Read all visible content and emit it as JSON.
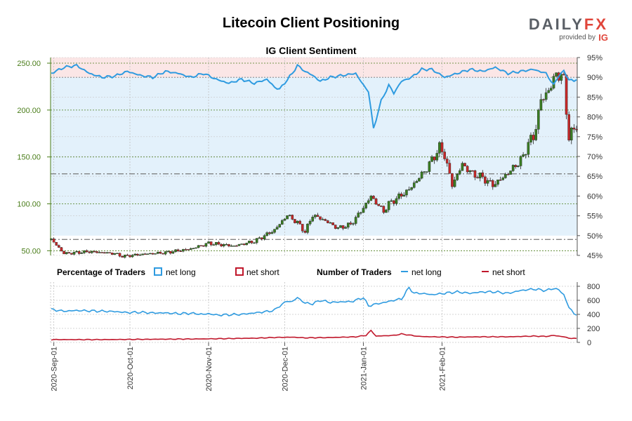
{
  "title": "Litecoin Client Positioning",
  "subtitle": "IG Client Sentiment",
  "logo": {
    "brand": "DAILY",
    "brand_accent": "FX",
    "provided_by": "provided by",
    "partner": "IG"
  },
  "colors": {
    "price_axis": "#4a7d1a",
    "up_candle": "#3a7d22",
    "down_candle": "#c62828",
    "net_long": "#2f9be0",
    "net_short": "#c0172b",
    "long_zone": "#e3f1fb",
    "short_zone": "#fbe6e6"
  },
  "legend": {
    "percentage_heading": "Percentage of Traders",
    "percentage_long": "net long",
    "percentage_short": "net short",
    "number_heading": "Number of Traders",
    "number_long": "net long",
    "number_short": "net short"
  },
  "chart_data": [
    {
      "type": "candlestick",
      "panel": "price",
      "title": "IG Client Sentiment",
      "start_date": "2020-08-31",
      "left_axis": {
        "ticks": [
          50,
          100,
          150,
          200,
          250
        ],
        "tick_labels": [
          "50.00",
          "100.00",
          "150.00",
          "200.00",
          "250.00"
        ],
        "range": [
          45,
          256
        ]
      },
      "reference_lines": [
        {
          "axis": "price",
          "value": 62,
          "style": "dash-dot"
        },
        {
          "axis": "price",
          "value": 132,
          "style": "dash-dot"
        }
      ],
      "close_knots": [
        [
          0,
          62
        ],
        [
          5,
          47
        ],
        [
          15,
          49
        ],
        [
          25,
          47
        ],
        [
          28,
          44
        ],
        [
          35,
          46
        ],
        [
          45,
          48
        ],
        [
          55,
          52
        ],
        [
          62,
          58
        ],
        [
          72,
          55
        ],
        [
          80,
          60
        ],
        [
          88,
          72
        ],
        [
          93,
          88
        ],
        [
          97,
          80
        ],
        [
          100,
          70
        ],
        [
          103,
          88
        ],
        [
          108,
          82
        ],
        [
          113,
          74
        ],
        [
          118,
          78
        ],
        [
          122,
          92
        ],
        [
          126,
          108
        ],
        [
          129,
          98
        ],
        [
          131,
          92
        ],
        [
          133,
          100
        ],
        [
          141,
          115
        ],
        [
          148,
          138
        ],
        [
          153,
          160
        ],
        [
          155,
          152
        ],
        [
          158,
          120
        ],
        [
          162,
          142
        ],
        [
          166,
          132
        ],
        [
          170,
          128
        ],
        [
          174,
          120
        ],
        [
          178,
          128
        ],
        [
          182,
          138
        ],
        [
          186,
          150
        ],
        [
          188,
          166
        ],
        [
          190,
          170
        ],
        [
          193,
          210
        ],
        [
          197,
          225
        ],
        [
          199,
          240
        ],
        [
          202,
          232
        ],
        [
          204,
          170
        ],
        [
          207,
          185
        ]
      ]
    },
    {
      "type": "line",
      "panel": "price",
      "right_axis": {
        "ticks": [
          45,
          50,
          55,
          60,
          65,
          70,
          75,
          80,
          85,
          90,
          95
        ],
        "tick_labels": [
          "45%",
          "50%",
          "55%",
          "60%",
          "65%",
          "70%",
          "75%",
          "80%",
          "85%",
          "90%",
          "95%"
        ],
        "range": [
          45,
          95
        ]
      },
      "series": [
        {
          "name": "net long"
        }
      ],
      "knots": [
        [
          0,
          91
        ],
        [
          5,
          92.5
        ],
        [
          10,
          93
        ],
        [
          15,
          91
        ],
        [
          20,
          90
        ],
        [
          25,
          90.3
        ],
        [
          30,
          91.5
        ],
        [
          35,
          90.5
        ],
        [
          40,
          90
        ],
        [
          45,
          91.5
        ],
        [
          50,
          91
        ],
        [
          55,
          90
        ],
        [
          60,
          91
        ],
        [
          65,
          89.5
        ],
        [
          70,
          88.5
        ],
        [
          75,
          89.5
        ],
        [
          80,
          88.5
        ],
        [
          85,
          89.5
        ],
        [
          88,
          87.5
        ],
        [
          90,
          87
        ],
        [
          95,
          91
        ],
        [
          97,
          93
        ],
        [
          100,
          91.5
        ],
        [
          103,
          90.5
        ],
        [
          106,
          89
        ],
        [
          110,
          90
        ],
        [
          115,
          90.5
        ],
        [
          120,
          91
        ],
        [
          123,
          88
        ],
        [
          125,
          86.5
        ],
        [
          127,
          77
        ],
        [
          130,
          84
        ],
        [
          133,
          88
        ],
        [
          135,
          86
        ],
        [
          138,
          89
        ],
        [
          142,
          90
        ],
        [
          146,
          92
        ],
        [
          150,
          92
        ],
        [
          155,
          90
        ],
        [
          160,
          91
        ],
        [
          165,
          92
        ],
        [
          170,
          91.5
        ],
        [
          175,
          92.5
        ],
        [
          180,
          91
        ],
        [
          185,
          91.5
        ],
        [
          190,
          92
        ],
        [
          195,
          91
        ],
        [
          198,
          88
        ],
        [
          200,
          90.5
        ],
        [
          202,
          91.5
        ],
        [
          204,
          89.5
        ],
        [
          206,
          89
        ],
        [
          207,
          89.5
        ]
      ]
    },
    {
      "type": "line",
      "panel": "number of traders",
      "y_axis": {
        "ticks": [
          0,
          200,
          400,
          600,
          800
        ],
        "tick_labels": [
          "0",
          "200",
          "400",
          "600",
          "800"
        ],
        "range": [
          0,
          860
        ]
      },
      "x_ticks": [
        "2020-Sep-01",
        "2020-Oct-01",
        "2020-Nov-01",
        "2020-Dec-01",
        "2021-Jan-01",
        "2021-Feb-01"
      ],
      "series": [
        {
          "name": "net long",
          "knots": [
            [
              0,
              470
            ],
            [
              5,
              445
            ],
            [
              10,
              455
            ],
            [
              15,
              450
            ],
            [
              20,
              445
            ],
            [
              25,
              440
            ],
            [
              30,
              425
            ],
            [
              35,
              430
            ],
            [
              40,
              420
            ],
            [
              45,
              420
            ],
            [
              50,
              410
            ],
            [
              55,
              415
            ],
            [
              60,
              400
            ],
            [
              62,
              410
            ],
            [
              65,
              390
            ],
            [
              70,
              395
            ],
            [
              75,
              400
            ],
            [
              80,
              420
            ],
            [
              85,
              440
            ],
            [
              88,
              460
            ],
            [
              90,
              520
            ],
            [
              93,
              590
            ],
            [
              95,
              580
            ],
            [
              97,
              640
            ],
            [
              100,
              560
            ],
            [
              103,
              550
            ],
            [
              106,
              600
            ],
            [
              110,
              570
            ],
            [
              115,
              580
            ],
            [
              118,
              580
            ],
            [
              120,
              600
            ],
            [
              123,
              640
            ],
            [
              125,
              520
            ],
            [
              127,
              540
            ],
            [
              130,
              560
            ],
            [
              135,
              600
            ],
            [
              138,
              620
            ],
            [
              141,
              780
            ],
            [
              143,
              700
            ],
            [
              146,
              700
            ],
            [
              150,
              680
            ],
            [
              155,
              700
            ],
            [
              160,
              720
            ],
            [
              165,
              700
            ],
            [
              170,
              720
            ],
            [
              175,
              720
            ],
            [
              180,
              700
            ],
            [
              185,
              740
            ],
            [
              190,
              760
            ],
            [
              195,
              740
            ],
            [
              198,
              770
            ],
            [
              200,
              750
            ],
            [
              202,
              680
            ],
            [
              204,
              500
            ],
            [
              206,
              410
            ],
            [
              207,
              400
            ]
          ]
        },
        {
          "name": "net short",
          "knots": [
            [
              0,
              40
            ],
            [
              20,
              40
            ],
            [
              40,
              45
            ],
            [
              60,
              50
            ],
            [
              80,
              60
            ],
            [
              88,
              70
            ],
            [
              95,
              75
            ],
            [
              100,
              65
            ],
            [
              110,
              70
            ],
            [
              120,
              80
            ],
            [
              124,
              100
            ],
            [
              126,
              170
            ],
            [
              128,
              90
            ],
            [
              135,
              100
            ],
            [
              138,
              120
            ],
            [
              140,
              110
            ],
            [
              145,
              85
            ],
            [
              150,
              80
            ],
            [
              160,
              75
            ],
            [
              170,
              80
            ],
            [
              180,
              80
            ],
            [
              190,
              90
            ],
            [
              195,
              85
            ],
            [
              198,
              100
            ],
            [
              200,
              90
            ],
            [
              202,
              80
            ],
            [
              204,
              60
            ],
            [
              207,
              55
            ]
          ]
        }
      ]
    }
  ]
}
